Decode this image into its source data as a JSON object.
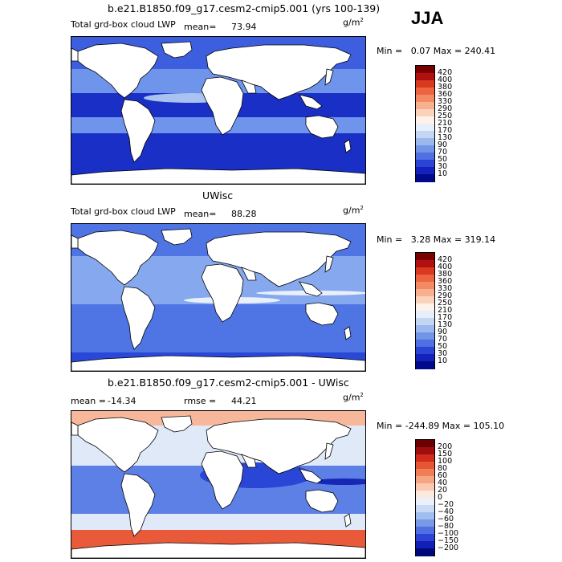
{
  "season": "JJA",
  "panels": [
    {
      "id": "model",
      "title": "b.e21.B1850.f09_g17.cesm2-cmip5.001 (yrs 100-139)",
      "field": "Total grd-box cloud LWP",
      "stat1_label": "mean=",
      "stat1_value": "73.94",
      "stat2_label": "",
      "stat2_value": "",
      "units": "g/m",
      "units_exp": "2",
      "minmax": "Min =   0.07 Max = 240.41",
      "colorbar_labels": [
        "420",
        "400",
        "380",
        "360",
        "330",
        "290",
        "250",
        "210",
        "170",
        "130",
        "90",
        "70",
        "50",
        "30",
        "10"
      ],
      "colorbar_colors": [
        "#7a0000",
        "#b01010",
        "#d8391f",
        "#ec6440",
        "#f38a63",
        "#f8b08e",
        "#fbd3bd",
        "#fff2ea",
        "#e6effb",
        "#c3d6f3",
        "#9cb8ee",
        "#7295e8",
        "#4f6fe2",
        "#2c44d6",
        "#1422bc",
        "#000a8a"
      ],
      "land_fill": "#ffffff",
      "ocean_colors": [
        "#1a2fc6",
        "#3d5fdf",
        "#6f94eb",
        "#a9c3f1"
      ]
    },
    {
      "id": "obs",
      "title": "UWisc",
      "field": "Total grd-box cloud LWP",
      "stat1_label": "mean=",
      "stat1_value": "88.28",
      "stat2_label": "",
      "stat2_value": "",
      "units": "g/m",
      "units_exp": "2",
      "minmax": "Min =   3.28 Max = 319.14",
      "colorbar_labels": [
        "420",
        "400",
        "380",
        "360",
        "330",
        "290",
        "250",
        "210",
        "170",
        "130",
        "90",
        "70",
        "50",
        "30",
        "10"
      ],
      "colorbar_colors": [
        "#7a0000",
        "#b01010",
        "#d8391f",
        "#ec6440",
        "#f38a63",
        "#f8b08e",
        "#fbd3bd",
        "#fff2ea",
        "#e6effb",
        "#c3d6f3",
        "#9cb8ee",
        "#7295e8",
        "#4f6fe2",
        "#2c44d6",
        "#1422bc",
        "#000a8a"
      ],
      "land_fill": "#ffffff",
      "ocean_colors": [
        "#2a48d8",
        "#4f74e4",
        "#86a8ee",
        "#e9f0fb"
      ]
    },
    {
      "id": "diff",
      "title": "b.e21.B1850.f09_g17.cesm2-cmip5.001 - UWisc",
      "field": "",
      "stat1_label": "mean =",
      "stat1_value": "-14.34",
      "stat2_label": "rmse =",
      "stat2_value": "44.21",
      "units": "g/m",
      "units_exp": "2",
      "minmax": "Min = -244.89 Max = 105.10",
      "colorbar_labels": [
        "200",
        "150",
        "100",
        "80",
        "60",
        "40",
        "20",
        "0",
        "−20",
        "−40",
        "−60",
        "−80",
        "−100",
        "−150",
        "−200"
      ],
      "colorbar_colors": [
        "#6b0000",
        "#a00d0d",
        "#cf2c1c",
        "#e75634",
        "#f07f58",
        "#f5a582",
        "#fac9b0",
        "#fde8dc",
        "#eaf1fb",
        "#c9dbf4",
        "#a2bdef",
        "#7898e8",
        "#4f6fe2",
        "#2c44d6",
        "#1220b8",
        "#00087a"
      ],
      "land_fill": "#ffffff",
      "ocean_colors": [
        "#e85a3a",
        "#f7b79a",
        "#dfe9f8",
        "#5d80e6"
      ]
    }
  ]
}
